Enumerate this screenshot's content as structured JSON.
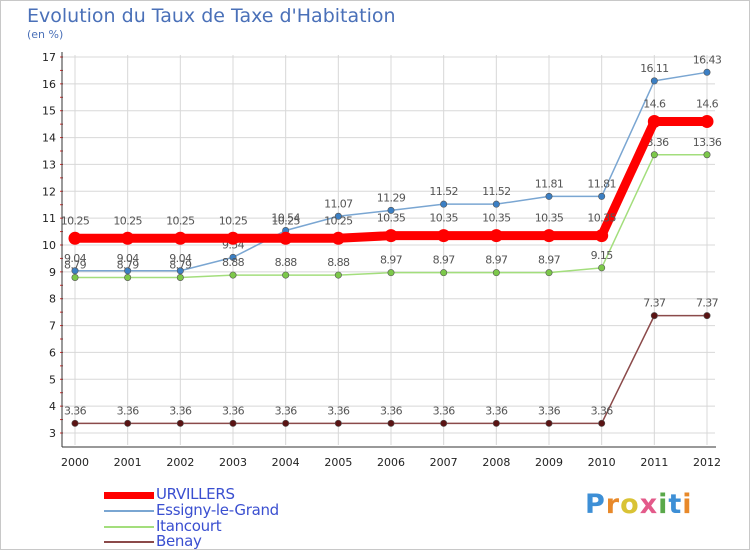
{
  "title": "Evolution du Taux de Taxe d'Habitation",
  "subtitle": "(en %)",
  "brand": {
    "text": "Proxiti",
    "letter_colors": [
      "#3d8fd6",
      "#e8892a",
      "#d9c335",
      "#e35a8a",
      "#5aa84a",
      "#3d8fd6",
      "#e8892a"
    ]
  },
  "colors": {
    "grid": "#d8d8d8",
    "axis_text": "#222222",
    "label_text": "#555555"
  },
  "chart_data": {
    "type": "line",
    "title": "Evolution du Taux de Taxe d'Habitation",
    "ylabel": "(en %)",
    "x": [
      "2000",
      "2001",
      "2002",
      "2003",
      "2004",
      "2005",
      "2006",
      "2007",
      "2008",
      "2009",
      "2010",
      "2011",
      "2012"
    ],
    "yticks": [
      3,
      4,
      5,
      6,
      7,
      8,
      9,
      10,
      11,
      12,
      13,
      14,
      15,
      16,
      17
    ],
    "ylim": [
      3,
      17
    ],
    "grid": true,
    "series": [
      {
        "name": "Essigny-le-Grand",
        "color": "#7aa6d2",
        "marker": "#3b7fc4",
        "width": 1.5,
        "labels": "above",
        "values": [
          9.04,
          9.04,
          9.04,
          9.54,
          10.54,
          11.07,
          11.29,
          11.52,
          11.52,
          11.81,
          11.81,
          16.11,
          16.43
        ],
        "value_labels": [
          "9.04",
          "9.04",
          "9.04",
          "9.54",
          "10.54",
          "11.07",
          "11.29",
          "11.52",
          "11.52",
          "11.81",
          "11.81",
          "16.11",
          "16.43"
        ]
      },
      {
        "name": "Itancourt",
        "color": "#a3de7c",
        "marker": "#7cc84a",
        "width": 1.5,
        "labels": "above",
        "values": [
          8.79,
          8.79,
          8.79,
          8.88,
          8.88,
          8.88,
          8.97,
          8.97,
          8.97,
          8.97,
          9.15,
          13.36,
          13.36
        ],
        "value_labels": [
          "8.79",
          "8.79",
          "8.79",
          "8.88",
          "8.88",
          "8.88",
          "8.97",
          "8.97",
          "8.97",
          "8.97",
          "9.15",
          "13.36",
          "13.36"
        ]
      },
      {
        "name": "Benay",
        "color": "#8b4a4a",
        "marker": "#5a1414",
        "width": 1.5,
        "labels": "above",
        "values": [
          3.36,
          3.36,
          3.36,
          3.36,
          3.36,
          3.36,
          3.36,
          3.36,
          3.36,
          3.36,
          3.36,
          7.37,
          7.37
        ],
        "value_labels": [
          "3.36",
          "3.36",
          "3.36",
          "3.36",
          "3.36",
          "3.36",
          "3.36",
          "3.36",
          "3.36",
          "3.36",
          "3.36",
          "7.37",
          "7.37"
        ]
      },
      {
        "name": "URVILLERS",
        "color": "#ff0000",
        "marker": "#ff0000",
        "width": 9,
        "labels": "above",
        "values": [
          10.25,
          10.25,
          10.25,
          10.25,
          10.25,
          10.25,
          10.35,
          10.35,
          10.35,
          10.35,
          10.35,
          14.6,
          14.6
        ],
        "value_labels": [
          "10.25",
          "10.25",
          "10.25",
          "10.25",
          "10.25",
          "10.25",
          "10.35",
          "10.35",
          "10.35",
          "10.35",
          "10.35",
          "14.6",
          "14.6"
        ]
      }
    ],
    "legend": {
      "position": "bottom-left",
      "entries": [
        {
          "label": "URVILLERS",
          "color": "#ff0000",
          "thickness": 7
        },
        {
          "label": "Essigny-le-Grand",
          "color": "#7aa6d2",
          "thickness": 2
        },
        {
          "label": "Itancourt",
          "color": "#a3de7c",
          "thickness": 2
        },
        {
          "label": "Benay",
          "color": "#8b4a4a",
          "thickness": 2
        }
      ]
    }
  }
}
